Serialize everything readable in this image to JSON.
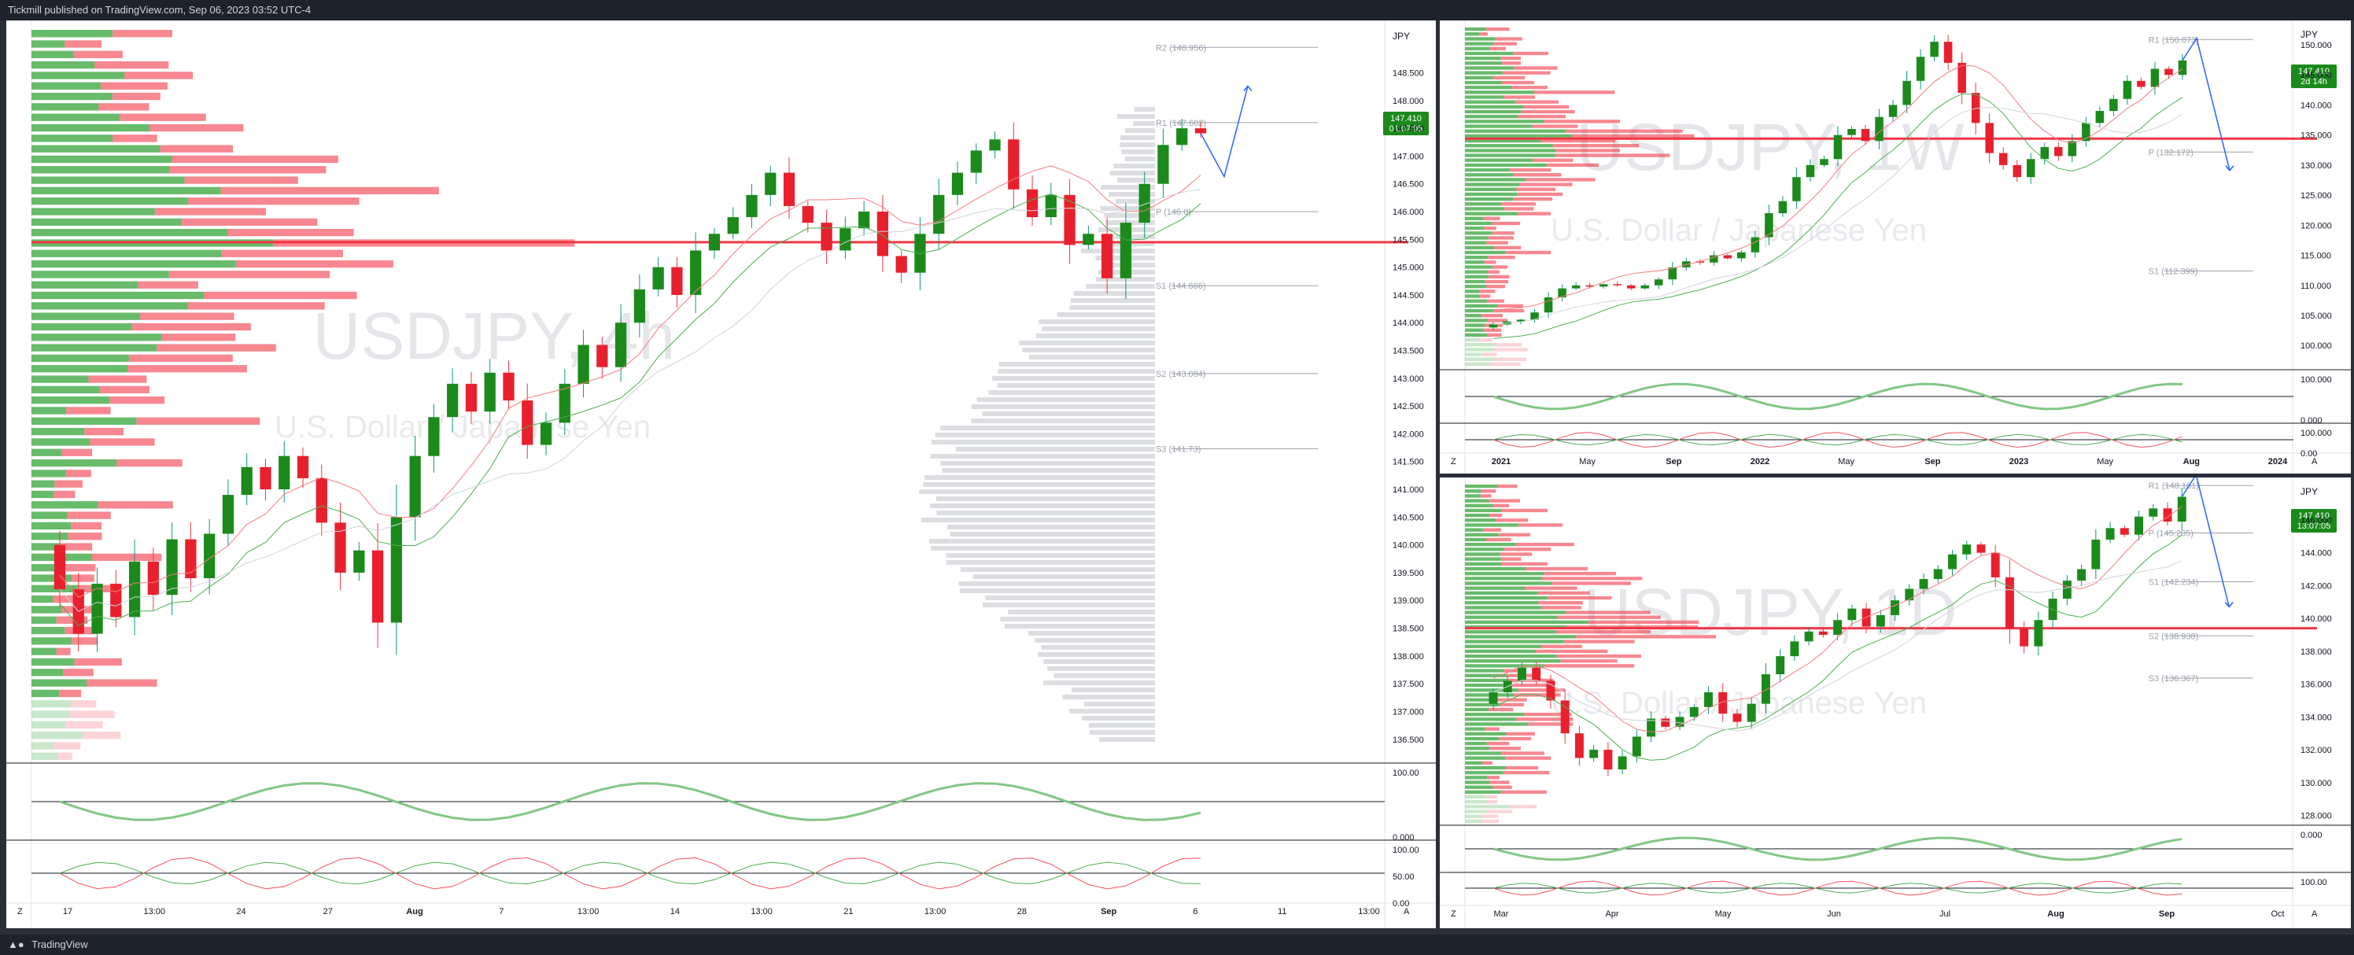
{
  "header": {
    "publisher_line": "Tickmill published on TradingView.com, Sep 06, 2023 03:52 UTC-4"
  },
  "footer": {
    "brand": "TradingView"
  },
  "chart_data": [
    {
      "id": "4h",
      "type": "candlestick",
      "symbol": "USDJPY, 4h",
      "description": "U.S. Dollar / Japanese Yen",
      "currency": "JPY",
      "last_price": "147.410",
      "countdown": "01:07:05",
      "y_range": [
        136.1,
        149.3
      ],
      "y_ticks": [
        "148.500",
        "148.000",
        "147.500",
        "147.000",
        "146.500",
        "146.000",
        "145.500",
        "145.000",
        "144.500",
        "144.000",
        "143.500",
        "143.000",
        "142.500",
        "142.000",
        "141.500",
        "141.000",
        "140.500",
        "140.000",
        "139.500",
        "139.000",
        "138.500",
        "138.000",
        "137.500",
        "137.000",
        "136.500"
      ],
      "x_ticks": [
        "17",
        "13:00",
        "24",
        "27",
        "Aug",
        "7",
        "13:00",
        "14",
        "13:00",
        "21",
        "13:00",
        "28",
        "Sep",
        "6",
        "11",
        "13:00"
      ],
      "pivots": [
        {
          "label": "R2 (148.956)",
          "value": 148.956
        },
        {
          "label": "R1 (147.602)",
          "value": 147.602
        },
        {
          "label": "P (146.0)",
          "value": 146.0
        },
        {
          "label": "S1 (144.666)",
          "value": 144.666
        },
        {
          "label": "S2 (143.084)",
          "value": 143.084
        },
        {
          "label": "S3 (141.73)",
          "value": 141.73
        }
      ],
      "key_level": 145.45,
      "close_path": [
        139.2,
        138.4,
        139.3,
        138.7,
        139.7,
        139.1,
        140.1,
        139.4,
        140.2,
        140.9,
        141.4,
        141.0,
        141.6,
        141.2,
        140.4,
        139.5,
        139.9,
        138.6,
        140.5,
        141.6,
        142.3,
        142.9,
        142.4,
        143.1,
        142.6,
        141.8,
        142.2,
        142.9,
        143.6,
        143.2,
        144.0,
        144.6,
        145.0,
        144.5,
        145.3,
        145.6,
        145.9,
        146.3,
        146.7,
        146.1,
        145.8,
        145.3,
        145.7,
        146.0,
        145.2,
        144.9,
        145.6,
        146.3,
        146.7,
        147.1,
        147.3,
        146.4,
        145.9,
        146.3,
        145.4,
        145.6,
        144.8,
        145.8,
        146.5,
        147.2,
        147.5,
        147.41
      ],
      "sub_indicators": [
        {
          "y_ticks": [
            "100.00",
            "0.000"
          ]
        },
        {
          "y_ticks": [
            "100.00",
            "50.00",
            "0.00"
          ]
        }
      ]
    },
    {
      "id": "1w",
      "type": "candlestick",
      "symbol": "USDJPY, 1W",
      "description": "U.S. Dollar / Japanese Yen",
      "currency": "JPY",
      "last_price": "147.410",
      "countdown": "2d 14h",
      "y_range": [
        96.5,
        153
      ],
      "y_ticks": [
        "150.000",
        "145.000",
        "140.000",
        "135.000",
        "130.000",
        "125.000",
        "120.000",
        "115.000",
        "110.000",
        "105.000",
        "100.000"
      ],
      "x_ticks": [
        "2021",
        "May",
        "Sep",
        "2022",
        "May",
        "Sep",
        "2023",
        "May",
        "Aug",
        "2024"
      ],
      "pivots": [
        {
          "label": "R1 (150.873)",
          "value": 150.873
        },
        {
          "label": "P (132.172)",
          "value": 132.172
        },
        {
          "label": "S1 (112.399)",
          "value": 112.399
        }
      ],
      "key_level": 134.4,
      "close_path": [
        103.5,
        104.0,
        104.3,
        105.5,
        108.0,
        109.5,
        110.0,
        109.8,
        110.2,
        110.0,
        109.5,
        110.0,
        111.0,
        113.0,
        114.0,
        113.8,
        115.0,
        114.5,
        115.5,
        118.0,
        122.0,
        124.0,
        128.0,
        130.0,
        131.0,
        135.0,
        136.0,
        134.0,
        138.0,
        140.0,
        144.0,
        148.0,
        150.5,
        147.0,
        142.0,
        137.0,
        132.0,
        130.0,
        128.0,
        131.0,
        133.0,
        131.5,
        134.0,
        137.0,
        139.0,
        141.0,
        144.0,
        143.0,
        146.0,
        145.0,
        147.41
      ],
      "sub_indicators": [
        {
          "y_ticks": [
            "100.000",
            "0.000"
          ]
        },
        {
          "y_ticks": [
            "100.000",
            "0.00"
          ]
        }
      ]
    },
    {
      "id": "1d",
      "type": "candlestick",
      "symbol": "USDJPY, 1D",
      "description": "U.S. Dollar / Japanese Yen",
      "currency": "JPY",
      "last_price": "147.410",
      "countdown": "13:07:05",
      "y_range": [
        127.5,
        148.2
      ],
      "y_ticks": [
        "148.000",
        "146.000",
        "144.000",
        "142.000",
        "140.000",
        "138.000",
        "136.000",
        "134.000",
        "132.000",
        "130.000",
        "128.000"
      ],
      "x_ticks": [
        "Mar",
        "Apr",
        "May",
        "Jun",
        "Jul",
        "Aug",
        "Sep",
        "Oct"
      ],
      "pivots": [
        {
          "label": "R1 (148.101)",
          "value": 148.101
        },
        {
          "label": "P (145.205)",
          "value": 145.205
        },
        {
          "label": "S1 (142.234)",
          "value": 142.234
        },
        {
          "label": "S2 (138.938)",
          "value": 138.938
        },
        {
          "label": "S3 (136.367)",
          "value": 136.367
        }
      ],
      "key_level": 139.4,
      "close_path": [
        135.5,
        136.2,
        137.0,
        136.2,
        135.0,
        133.0,
        131.5,
        132.0,
        130.8,
        131.6,
        132.8,
        133.9,
        133.4,
        134.0,
        134.6,
        135.5,
        134.2,
        133.7,
        134.8,
        136.6,
        137.7,
        138.6,
        139.2,
        139.0,
        139.9,
        140.6,
        139.5,
        140.2,
        141.1,
        141.8,
        142.4,
        143.0,
        143.9,
        144.5,
        144.0,
        142.5,
        139.4,
        138.3,
        139.9,
        141.2,
        142.3,
        143.0,
        144.8,
        145.5,
        145.1,
        146.2,
        146.7,
        145.9,
        147.41
      ],
      "sub_indicators": [
        {
          "y_ticks": [
            "0.000"
          ]
        },
        {
          "y_ticks": [
            "100.00"
          ]
        }
      ]
    }
  ]
}
